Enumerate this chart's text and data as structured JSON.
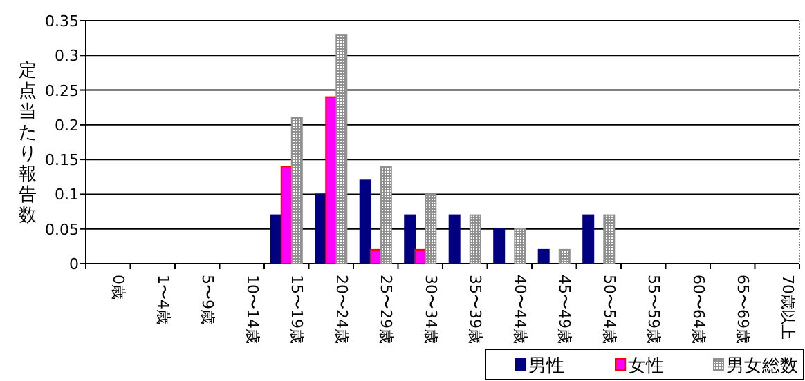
{
  "chart_data": {
    "type": "bar",
    "ylabel": "定点当たり報告数",
    "categories": [
      "0歳",
      "1〜4歳",
      "5〜9歳",
      "10〜14歳",
      "15〜19歳",
      "20〜24歳",
      "25〜29歳",
      "30〜34歳",
      "35〜39歳",
      "40〜44歳",
      "45〜49歳",
      "50〜54歳",
      "55〜59歳",
      "60〜64歳",
      "65〜69歳",
      "70歳以上"
    ],
    "series": [
      {
        "name": "男性",
        "color": "#000080",
        "values": [
          0,
          0,
          0,
          0,
          0.07,
          0.1,
          0.12,
          0.07,
          0.07,
          0.05,
          0.02,
          0.07,
          0,
          0,
          0,
          0
        ]
      },
      {
        "name": "女性",
        "color": "#ff00ff",
        "values": [
          0,
          0,
          0,
          0,
          0.14,
          0.24,
          0.02,
          0.02,
          0,
          0,
          0,
          0,
          0,
          0,
          0,
          0
        ]
      },
      {
        "name": "男女総数",
        "color": "#909090",
        "values": [
          0,
          0,
          0,
          0,
          0.21,
          0.33,
          0.14,
          0.1,
          0.07,
          0.05,
          0.02,
          0.07,
          0,
          0,
          0,
          0
        ]
      }
    ],
    "ylim": [
      0,
      0.35
    ],
    "yticks": [
      0,
      0.05,
      0.1,
      0.15,
      0.2,
      0.25,
      0.3,
      0.35
    ],
    "grid": "y",
    "legend": "bottom right"
  }
}
